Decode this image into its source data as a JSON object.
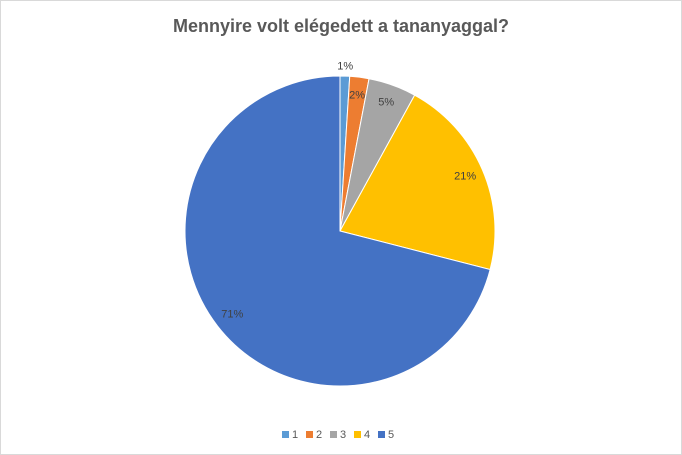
{
  "chart_data": {
    "type": "pie",
    "title": "Mennyire volt elégedett a tananyaggal?",
    "categories": [
      "1",
      "2",
      "3",
      "4",
      "5"
    ],
    "values": [
      1,
      2,
      5,
      21,
      71
    ],
    "value_labels": [
      "1%",
      "2%",
      "5%",
      "21%",
      "71%"
    ],
    "colors": [
      "#5b9bd5",
      "#ed7d31",
      "#a5a5a5",
      "#ffc000",
      "#4472c4"
    ],
    "legend": "bottom"
  }
}
